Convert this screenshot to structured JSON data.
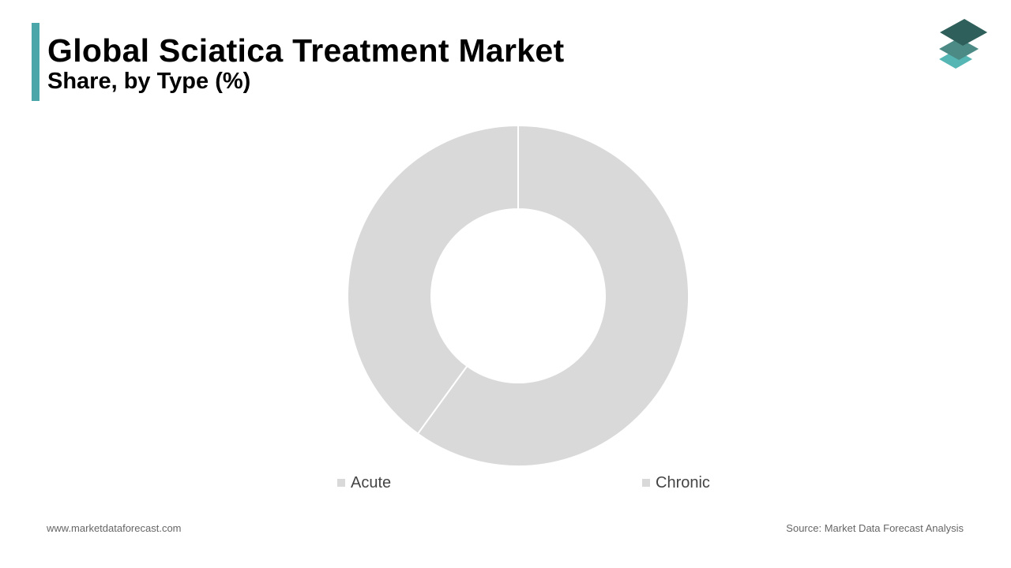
{
  "header": {
    "title": "Global Sciatica Treatment Market",
    "subtitle": "Share, by Type (%)",
    "accent_color": "#4aa6a8"
  },
  "logo": {
    "icon": "stacked-layers-icon",
    "colors": [
      "#2f5f5a",
      "#4c8a86",
      "#55b6b4"
    ]
  },
  "chart_data": {
    "type": "pie",
    "variant": "donut",
    "categories": [
      "Chronic",
      "Acute"
    ],
    "values": [
      60,
      40
    ],
    "colors": [
      "#d9d9d9",
      "#d9d9d9"
    ],
    "legend": [
      "Acute",
      "Chronic"
    ],
    "legend_position": "bottom"
  },
  "footer": {
    "website": "www.marketdataforecast.com",
    "source": "Source: Market Data Forecast Analysis"
  }
}
